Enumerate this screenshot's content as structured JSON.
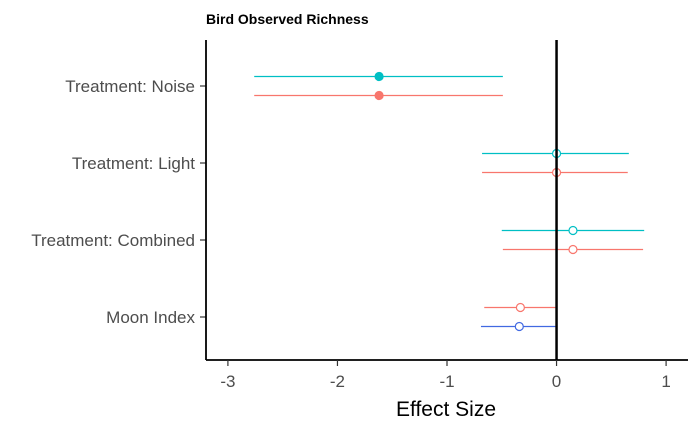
{
  "chart_data": {
    "type": "scatter",
    "title": "Bird Observed Richness",
    "xlabel": "Effect Size",
    "ylabel": "",
    "xlim": [
      -3.2,
      1.2
    ],
    "xticks": [
      -3,
      -2,
      -1,
      0,
      1
    ],
    "xtick_labels": [
      "-3",
      "-2",
      "-1",
      "0",
      "1"
    ],
    "reference_line_x": 0,
    "grid": false,
    "legend": "none",
    "categories": [
      "Treatment: Noise",
      "Treatment: Light",
      "Treatment: Combined",
      "Moon Index"
    ],
    "series": [
      {
        "color": "#00BFC4",
        "points": [
          {
            "category": "Treatment: Noise",
            "estimate": -1.62,
            "low": -2.76,
            "high": -0.49,
            "filled": true
          },
          {
            "category": "Treatment: Light",
            "estimate": 0.0,
            "low": -0.68,
            "high": 0.66,
            "filled": false
          },
          {
            "category": "Treatment: Combined",
            "estimate": 0.15,
            "low": -0.5,
            "high": 0.8,
            "filled": false
          }
        ]
      },
      {
        "color": "#F8766D",
        "points": [
          {
            "category": "Treatment: Noise",
            "estimate": -1.62,
            "low": -2.76,
            "high": -0.49,
            "filled": true
          },
          {
            "category": "Treatment: Light",
            "estimate": 0.0,
            "low": -0.68,
            "high": 0.65,
            "filled": false
          },
          {
            "category": "Treatment: Combined",
            "estimate": 0.15,
            "low": -0.49,
            "high": 0.79,
            "filled": false
          },
          {
            "category": "Moon Index",
            "estimate": -0.33,
            "low": -0.66,
            "high": -0.01,
            "filled": false
          }
        ]
      },
      {
        "color": "#4169E1",
        "points": [
          {
            "category": "Moon Index",
            "estimate": -0.34,
            "low": -0.69,
            "high": -0.01,
            "filled": false
          }
        ]
      }
    ]
  }
}
